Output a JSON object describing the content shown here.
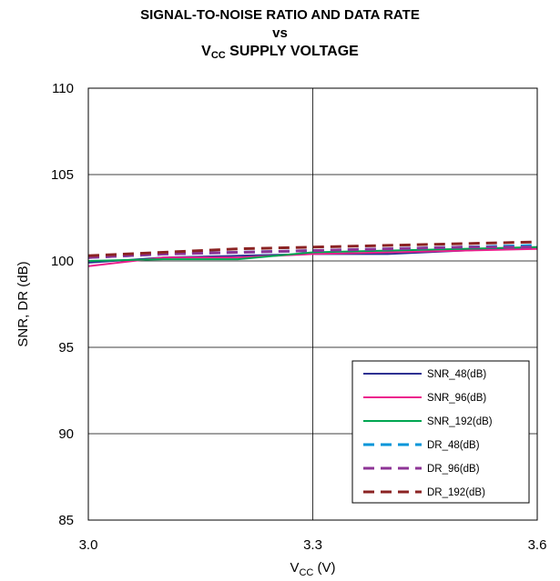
{
  "chart_data": {
    "type": "line",
    "title_line1": "SIGNAL-TO-NOISE RATIO AND DATA RATE",
    "title_line2": "vs",
    "title_line3_main": "V",
    "title_line3_sub": "CC",
    "title_line3_rest": " SUPPLY VOLTAGE",
    "xlabel_main": "V",
    "xlabel_sub": "CC",
    "xlabel_rest": " (V)",
    "ylabel": "SNR, DR (dB)",
    "xlim": [
      3.0,
      3.6
    ],
    "ylim": [
      85,
      110
    ],
    "xticks": [
      3.0,
      3.3,
      3.6
    ],
    "xtick_labels": [
      "3.0",
      "3.3",
      "3.6"
    ],
    "yticks": [
      85,
      90,
      95,
      100,
      105,
      110
    ],
    "ytick_labels": [
      "85",
      "90",
      "95",
      "100",
      "105",
      "110"
    ],
    "grid": true,
    "legend_position": "bottom-right",
    "x": [
      3.0,
      3.1,
      3.2,
      3.3,
      3.4,
      3.5,
      3.6
    ],
    "series": [
      {
        "name": "SNR_48(dB)",
        "color": "#2e3192",
        "dash": false,
        "values": [
          99.9,
          100.2,
          100.3,
          100.4,
          100.4,
          100.6,
          100.8
        ]
      },
      {
        "name": "SNR_96(dB)",
        "color": "#ec1e8c",
        "dash": false,
        "values": [
          99.7,
          100.2,
          100.2,
          100.4,
          100.5,
          100.6,
          100.7
        ]
      },
      {
        "name": "SNR_192(dB)",
        "color": "#00a651",
        "dash": false,
        "values": [
          100.0,
          100.1,
          100.1,
          100.5,
          100.6,
          100.7,
          100.8
        ]
      },
      {
        "name": "DR_48(dB)",
        "color": "#0095d9",
        "dash": true,
        "values": [
          100.2,
          100.4,
          100.5,
          100.6,
          100.7,
          100.8,
          100.9
        ]
      },
      {
        "name": "DR_96(dB)",
        "color": "#8e3496",
        "dash": true,
        "values": [
          100.2,
          100.4,
          100.5,
          100.6,
          100.7,
          100.8,
          100.8
        ]
      },
      {
        "name": "DR_192(dB)",
        "color": "#8b2323",
        "dash": true,
        "values": [
          100.3,
          100.5,
          100.7,
          100.8,
          100.9,
          101.0,
          101.1
        ]
      }
    ]
  }
}
